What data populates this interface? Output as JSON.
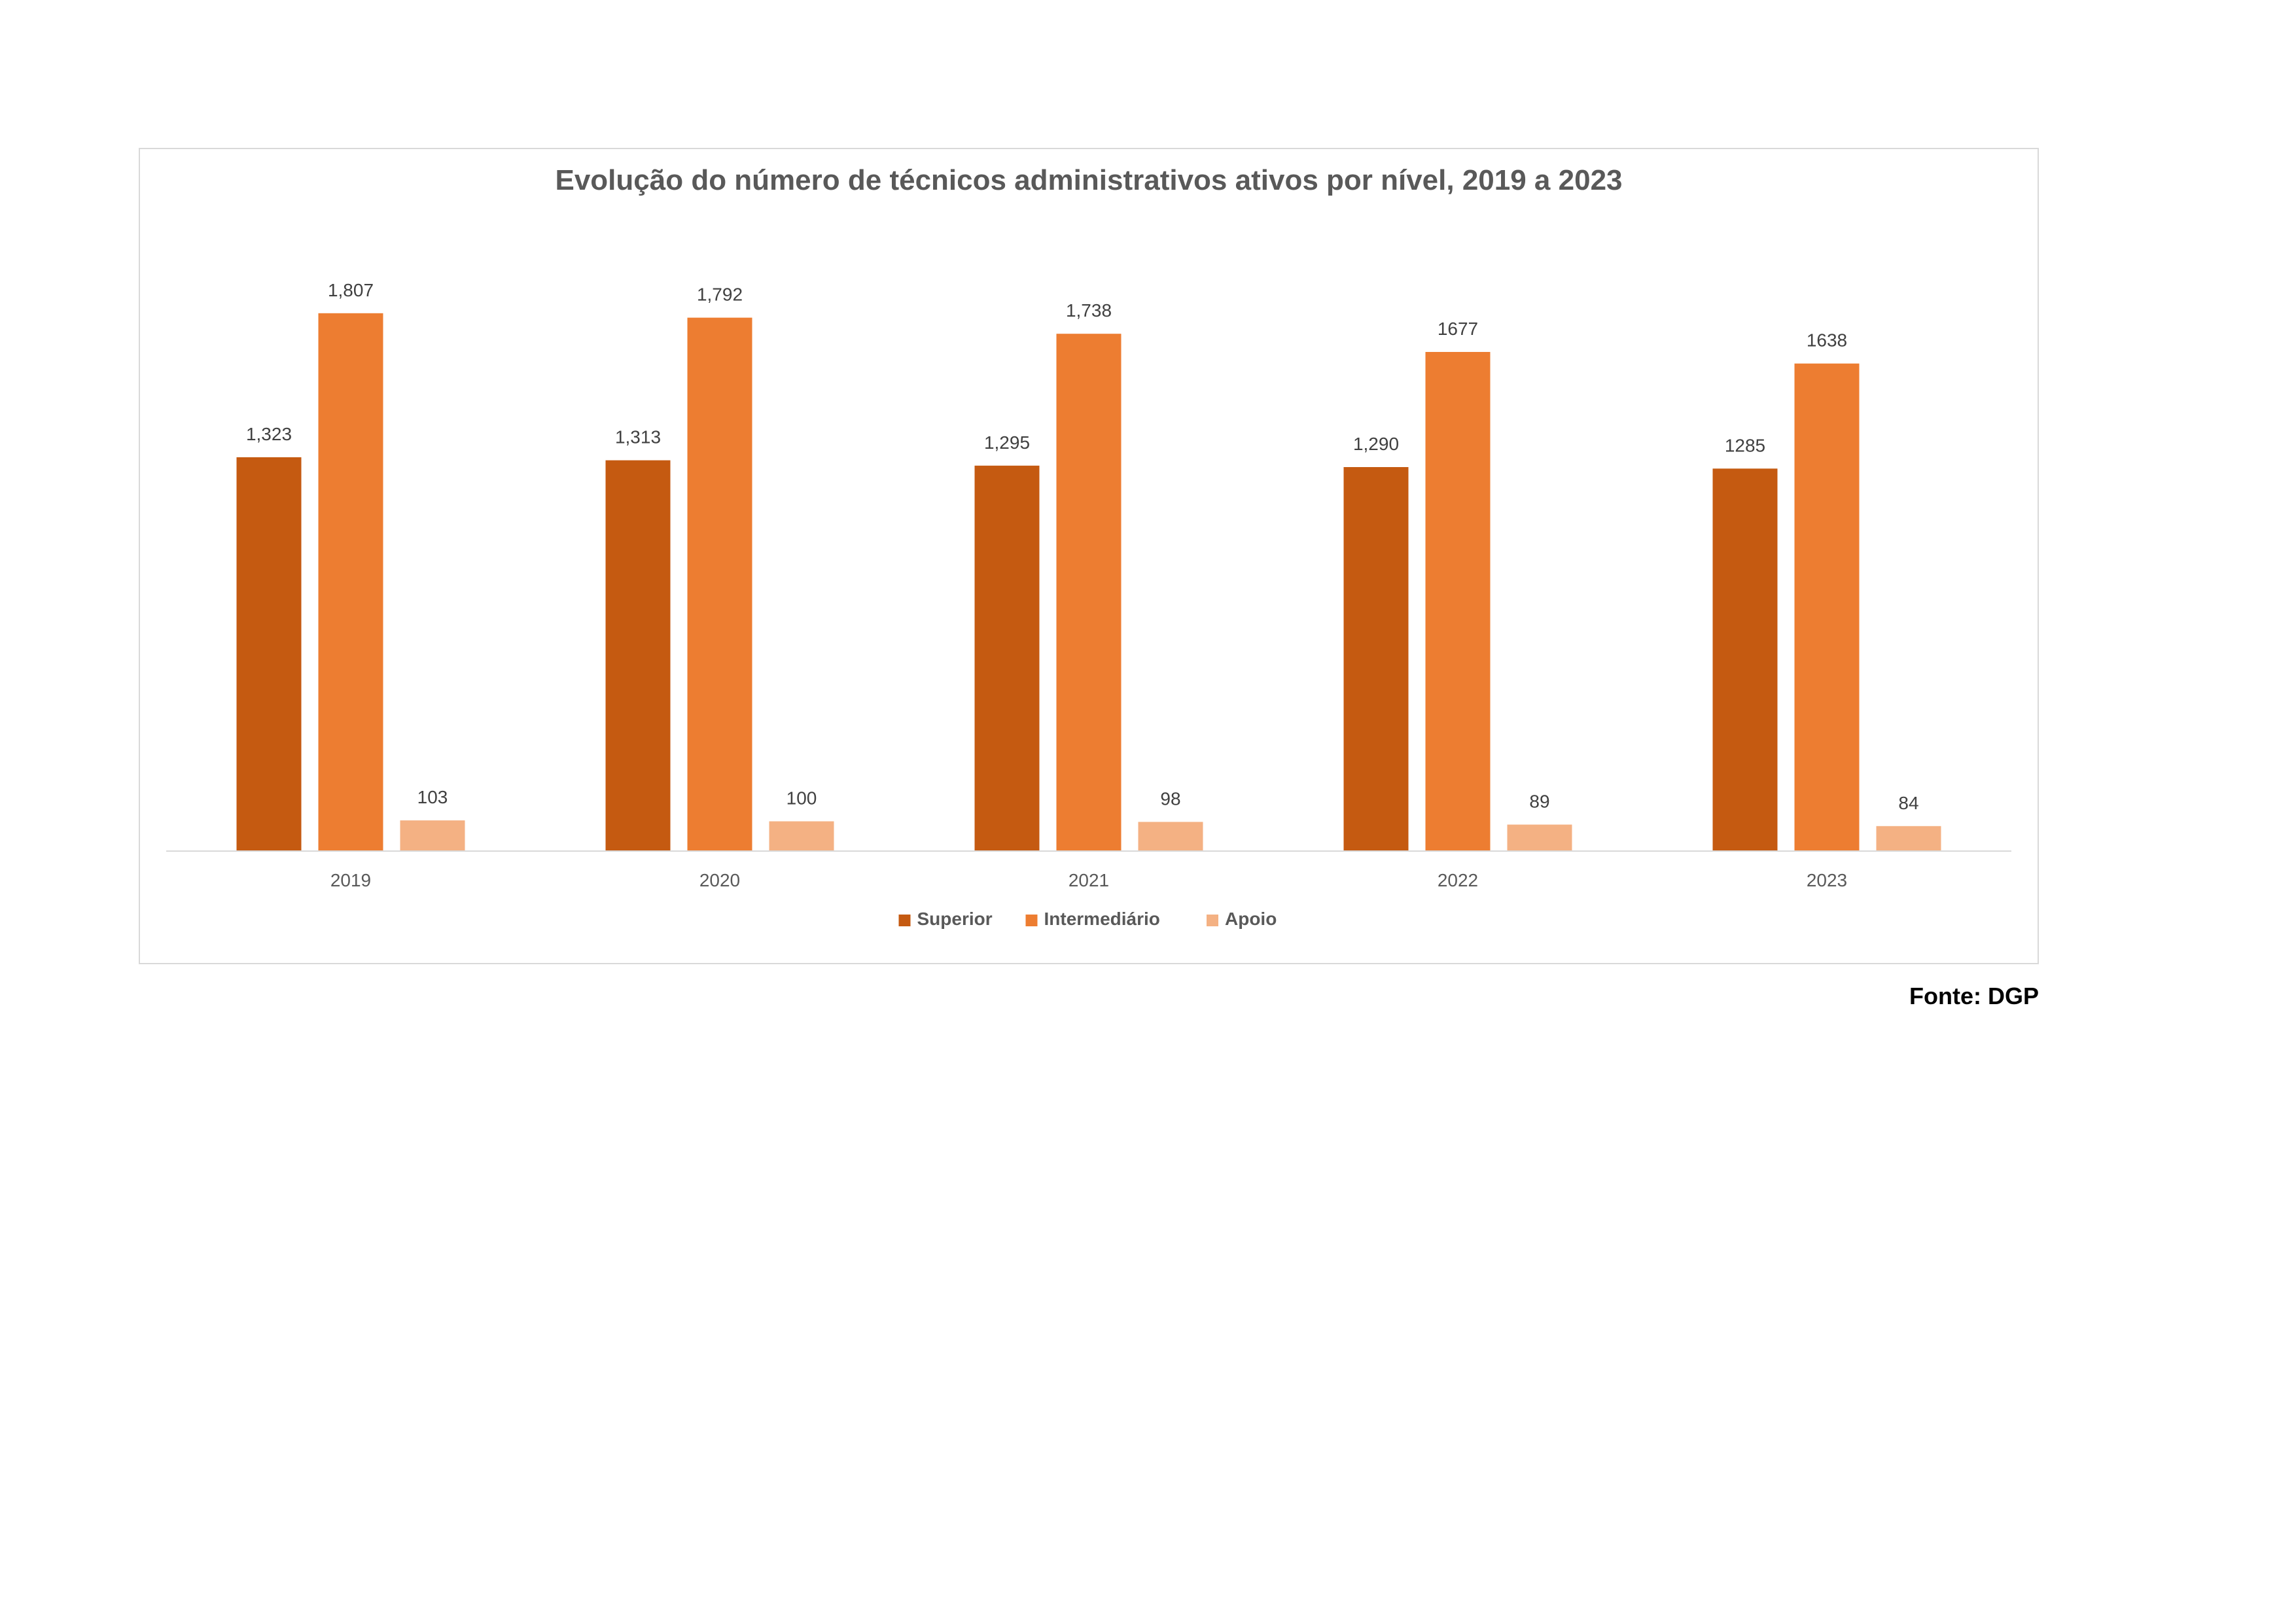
{
  "chart_data": {
    "type": "bar",
    "title": "Evolução do número de técnicos administrativos ativos por nível, 2019 a 2023",
    "xlabel": "",
    "ylabel": "",
    "categories": [
      "2019",
      "2020",
      "2021",
      "2022",
      "2023"
    ],
    "series": [
      {
        "name": "Superior",
        "color": "#c55a11",
        "values": [
          1323,
          1313,
          1295,
          1290,
          1285
        ],
        "labels": [
          "1,323",
          "1,313",
          "1,295",
          "1,290",
          "1285"
        ]
      },
      {
        "name": "Intermediário",
        "color": "#ed7d31",
        "values": [
          1807,
          1792,
          1738,
          1677,
          1638
        ],
        "labels": [
          "1,807",
          "1,792",
          "1,738",
          "1677",
          "1638"
        ]
      },
      {
        "name": "Apoio",
        "color": "#f4b183",
        "values": [
          103,
          100,
          98,
          89,
          84
        ],
        "labels": [
          "103",
          "100",
          "98",
          "89",
          "84"
        ]
      }
    ],
    "ylim": [
      0,
      2000
    ],
    "grid": false,
    "legend": "bottom-center"
  },
  "source": "Fonte: DGP"
}
